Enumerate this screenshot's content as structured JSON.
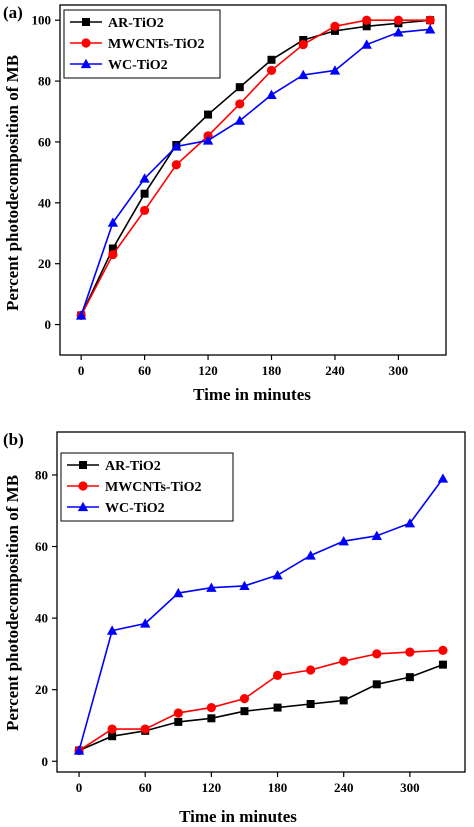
{
  "chart_data": [
    {
      "panel_label": "(a)",
      "type": "line",
      "xlabel": "Time in minutes",
      "ylabel": "Percent photodecomposition of MB",
      "xlim": [
        -20,
        345
      ],
      "ylim": [
        -10,
        105
      ],
      "xticks": [
        0,
        60,
        120,
        180,
        240,
        300
      ],
      "yticks": [
        0,
        20,
        40,
        60,
        80,
        100
      ],
      "legend_position": "top-left",
      "series": [
        {
          "name": "AR-TiO2",
          "color": "#000000",
          "marker": "square",
          "x": [
            0,
            30,
            60,
            90,
            120,
            150,
            180,
            210,
            240,
            270,
            300,
            330
          ],
          "y": [
            3,
            25,
            43,
            59,
            69,
            78,
            87,
            93.5,
            96.5,
            98,
            99,
            100
          ]
        },
        {
          "name": "MWCNTs-TiO2",
          "color": "#ff0000",
          "marker": "circle",
          "x": [
            0,
            30,
            60,
            90,
            120,
            150,
            180,
            210,
            240,
            270,
            300,
            330
          ],
          "y": [
            3,
            23,
            37.5,
            52.5,
            62,
            72.5,
            83.5,
            92,
            98,
            100,
            100,
            100
          ]
        },
        {
          "name": "WC-TiO2",
          "color": "#0000ff",
          "marker": "triangle",
          "x": [
            0,
            30,
            60,
            90,
            120,
            150,
            180,
            210,
            240,
            270,
            300,
            330
          ],
          "y": [
            3,
            33.5,
            48,
            58.5,
            60.5,
            67,
            75.5,
            82,
            83.5,
            92,
            96,
            97
          ]
        }
      ]
    },
    {
      "panel_label": "(b)",
      "type": "line",
      "xlabel": "Time in minutes",
      "ylabel": "Percent photodecomposition of MB",
      "xlim": [
        -20,
        350
      ],
      "ylim": [
        -3,
        92
      ],
      "xticks": [
        0,
        60,
        120,
        180,
        240,
        300
      ],
      "yticks": [
        0,
        20,
        40,
        60,
        80
      ],
      "legend_position": "top-left",
      "series": [
        {
          "name": "AR-TiO2",
          "color": "#000000",
          "marker": "square",
          "x": [
            0,
            30,
            60,
            90,
            120,
            150,
            180,
            210,
            240,
            270,
            300,
            330
          ],
          "y": [
            3,
            7,
            8.5,
            11,
            12,
            14,
            15,
            16,
            17,
            21.5,
            23.5,
            27
          ]
        },
        {
          "name": "MWCNTs-TiO2",
          "color": "#ff0000",
          "marker": "circle",
          "x": [
            0,
            30,
            60,
            90,
            120,
            150,
            180,
            210,
            240,
            270,
            300,
            330
          ],
          "y": [
            3,
            9,
            9,
            13.5,
            15,
            17.5,
            24,
            25.5,
            28,
            30,
            30.5,
            31
          ]
        },
        {
          "name": "WC-TiO2",
          "color": "#0000ff",
          "marker": "triangle",
          "x": [
            0,
            30,
            60,
            90,
            120,
            150,
            180,
            210,
            240,
            270,
            300,
            330
          ],
          "y": [
            3,
            36.5,
            38.5,
            47,
            48.5,
            49,
            52,
            57.5,
            61.5,
            63,
            66.5,
            79
          ]
        }
      ]
    }
  ]
}
